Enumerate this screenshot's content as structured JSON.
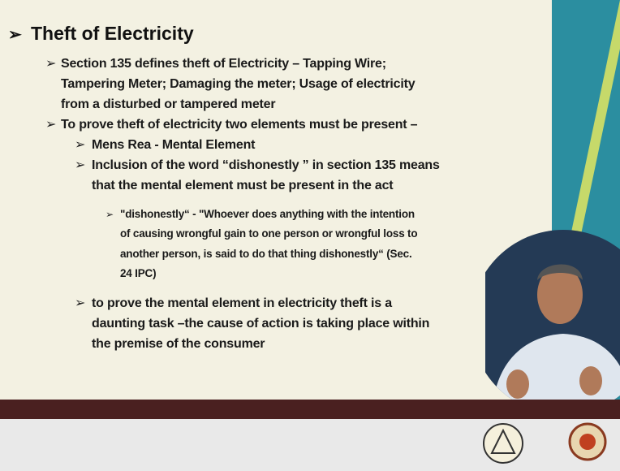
{
  "title": "Theft of Electricity",
  "points": [
    {
      "lines": [
        "Section 135 defines theft of Electricity – Tapping Wire;",
        "Tampering Meter;  Damaging the meter; Usage of electricity",
        "from a disturbed or tampered meter"
      ]
    },
    {
      "lines": [
        "To prove theft of electricity two elements must be present –"
      ],
      "sub": [
        {
          "lines": [
            "Mens Rea - Mental Element"
          ]
        },
        {
          "lines": [
            "Inclusion of the word “dishonestly ” in section 135 means",
            "that    the mental element must be present in the act"
          ],
          "sub": [
            {
              "lines": [
                "\"dishonestly“ - \"Whoever does anything with the intention",
                "of causing wrongful gain to one person or wrongful loss to",
                "another person, is said to do that thing dishonestly“ (Sec.",
                "24 IPC)"
              ]
            }
          ]
        },
        {
          "lines": [
            "to prove the mental element in electricity theft is a",
            "daunting task –the cause of action is taking place within",
            "the premise of the consumer"
          ]
        }
      ]
    }
  ]
}
